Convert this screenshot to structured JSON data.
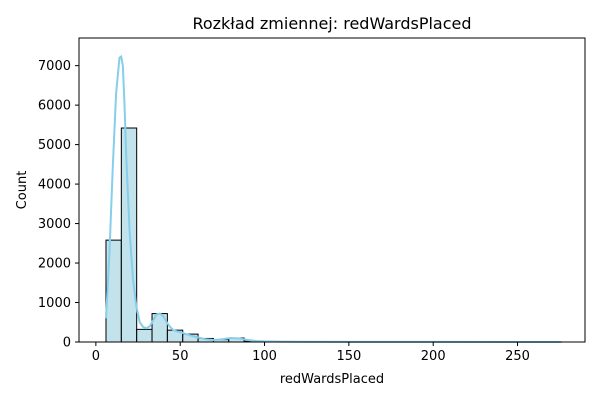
{
  "chart_data": {
    "type": "bar",
    "title": "Rozkład zmiennej: redWardsPlaced",
    "xlabel": "redWardsPlaced",
    "ylabel": "Count",
    "xlim": [
      -10,
      290
    ],
    "ylim": [
      0,
      7700
    ],
    "xticks": [
      0,
      50,
      100,
      150,
      200,
      250
    ],
    "yticks": [
      0,
      1000,
      2000,
      3000,
      4000,
      5000,
      6000,
      7000
    ],
    "grid": false,
    "bar_color": "#add8e6",
    "bar_edge_color": "#000000",
    "kde_color": "#87ceeb",
    "bins": [
      {
        "x0": 6,
        "x1": 15.1,
        "count": 2580
      },
      {
        "x0": 15.1,
        "x1": 24.2,
        "count": 5420
      },
      {
        "x0": 24.2,
        "x1": 33.3,
        "count": 320
      },
      {
        "x0": 33.3,
        "x1": 42.4,
        "count": 720
      },
      {
        "x0": 42.4,
        "x1": 51.5,
        "count": 300
      },
      {
        "x0": 51.5,
        "x1": 60.6,
        "count": 200
      },
      {
        "x0": 60.6,
        "x1": 69.7,
        "count": 90
      },
      {
        "x0": 69.7,
        "x1": 78.8,
        "count": 60
      },
      {
        "x0": 78.8,
        "x1": 87.9,
        "count": 100
      },
      {
        "x0": 87.9,
        "x1": 97.0,
        "count": 20
      },
      {
        "x0": 97.0,
        "x1": 106.1,
        "count": 8
      },
      {
        "x0": 106.1,
        "x1": 115.2,
        "count": 5
      },
      {
        "x0": 115.2,
        "x1": 124.3,
        "count": 4
      },
      {
        "x0": 124.3,
        "x1": 133.4,
        "count": 3
      },
      {
        "x0": 133.4,
        "x1": 142.5,
        "count": 3
      },
      {
        "x0": 142.5,
        "x1": 151.6,
        "count": 2
      },
      {
        "x0": 151.6,
        "x1": 160.7,
        "count": 2
      },
      {
        "x0": 160.7,
        "x1": 169.8,
        "count": 2
      },
      {
        "x0": 169.8,
        "x1": 178.9,
        "count": 1
      },
      {
        "x0": 178.9,
        "x1": 188.0,
        "count": 1
      },
      {
        "x0": 188.0,
        "x1": 197.1,
        "count": 1
      },
      {
        "x0": 197.1,
        "x1": 206.2,
        "count": 1
      },
      {
        "x0": 206.2,
        "x1": 215.3,
        "count": 1
      },
      {
        "x0": 215.3,
        "x1": 224.4,
        "count": 1
      },
      {
        "x0": 224.4,
        "x1": 233.5,
        "count": 1
      },
      {
        "x0": 233.5,
        "x1": 242.6,
        "count": 0
      },
      {
        "x0": 242.6,
        "x1": 251.7,
        "count": 1
      },
      {
        "x0": 251.7,
        "x1": 260.8,
        "count": 0
      },
      {
        "x0": 260.8,
        "x1": 269.9,
        "count": 0
      },
      {
        "x0": 269.9,
        "x1": 276,
        "count": 1
      }
    ],
    "kde": {
      "x": [
        6,
        8,
        10,
        12,
        14,
        15,
        16,
        17,
        18,
        20,
        22,
        24,
        26,
        28,
        30,
        32,
        34,
        36,
        38,
        40,
        42,
        44,
        46,
        48,
        50,
        55,
        60,
        65,
        70,
        75,
        80,
        85,
        90,
        95,
        100,
        110,
        120,
        150,
        200,
        250,
        276
      ],
      "y": [
        600,
        2200,
        4400,
        6300,
        7200,
        7230,
        7000,
        6000,
        4700,
        2800,
        1600,
        900,
        500,
        380,
        350,
        400,
        550,
        700,
        720,
        650,
        500,
        380,
        300,
        270,
        250,
        180,
        120,
        70,
        50,
        70,
        100,
        90,
        50,
        25,
        15,
        8,
        5,
        3,
        2,
        1,
        1
      ]
    }
  }
}
